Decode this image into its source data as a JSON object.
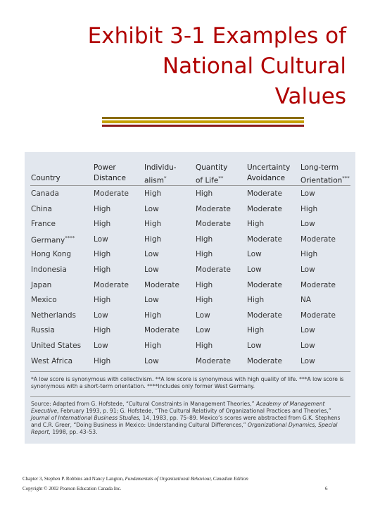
{
  "title": [
    "Exhibit 3-1 Examples of",
    "National Cultural",
    "Values"
  ],
  "table": {
    "headers": [
      {
        "lines": [
          "",
          "Country"
        ]
      },
      {
        "lines": [
          "Power",
          "Distance"
        ]
      },
      {
        "lines": [
          "Individu-",
          "alism"
        ],
        "note": "*"
      },
      {
        "lines": [
          "Quantity",
          "of Life"
        ],
        "note": "**"
      },
      {
        "lines": [
          "Uncertainty",
          "Avoidance"
        ]
      },
      {
        "lines": [
          "Long-term",
          "Orientation"
        ],
        "note": "***"
      }
    ],
    "rows": [
      {
        "country": "Canada",
        "scores": [
          "Moderate",
          "High",
          "High",
          "Moderate",
          "Low"
        ]
      },
      {
        "country": "China",
        "scores": [
          "High",
          "Low",
          "Moderate",
          "Moderate",
          "High"
        ]
      },
      {
        "country": "France",
        "scores": [
          "High",
          "High",
          "Moderate",
          "High",
          "Low"
        ]
      },
      {
        "country": "Germany",
        "note": "****",
        "scores": [
          "Low",
          "High",
          "High",
          "Moderate",
          "Moderate"
        ]
      },
      {
        "country": "Hong Kong",
        "scores": [
          "High",
          "Low",
          "High",
          "Low",
          "High"
        ]
      },
      {
        "country": "Indonesia",
        "scores": [
          "High",
          "Low",
          "Moderate",
          "Low",
          "Low"
        ]
      },
      {
        "country": "Japan",
        "scores": [
          "Moderate",
          "Moderate",
          "High",
          "Moderate",
          "Moderate"
        ]
      },
      {
        "country": "Mexico",
        "scores": [
          "High",
          "Low",
          "High",
          "High",
          "NA"
        ]
      },
      {
        "country": "Netherlands",
        "scores": [
          "Low",
          "High",
          "Low",
          "Moderate",
          "Moderate"
        ]
      },
      {
        "country": "Russia",
        "scores": [
          "High",
          "Moderate",
          "Low",
          "High",
          "Low"
        ]
      },
      {
        "country": "United States",
        "scores": [
          "Low",
          "High",
          "High",
          "Low",
          "Low"
        ]
      },
      {
        "country": "West Africa",
        "scores": [
          "High",
          "Low",
          "Moderate",
          "Moderate",
          "Low"
        ]
      }
    ],
    "footnote": "*A low score is synonymous with collectivism. **A low score is synonymous with high quality of life. ***A low score is synonymous with a short-term orientation. ****Includes only former West Germany.",
    "source": [
      {
        "text": "Source: Adapted from G. Hofstede, “Cultural Constraints in Management Theories,” "
      },
      {
        "text": "Academy of Management Executive,",
        "italic": true
      },
      {
        "text": " February 1993, p. 91; G. Hofstede, “The Cultural Relativity of Organizational Practices and Theories,” "
      },
      {
        "text": "Journal of International Business Studies,",
        "italic": true
      },
      {
        "text": " 14, 1983, pp. 75–89. Mexico’s scores were abstracted from G.K. Stephens and C.R. Greer, “Doing Business in Mexico: Understanding Cultural Differences,” "
      },
      {
        "text": "Organizational Dynamics, Special Report,",
        "italic": true
      },
      {
        "text": " 1998, pp. 43–53."
      }
    ]
  },
  "footer": {
    "citation": [
      {
        "text": "Chapter 3, Stephen P. Robbins and Nancy Langton, "
      },
      {
        "text": "Fundamentals of Organizational Behaviour, Canadian Edition",
        "italic": true
      }
    ],
    "copyright": "Copyright © 2002 Pearson Education Canada Inc.",
    "page": "6"
  }
}
